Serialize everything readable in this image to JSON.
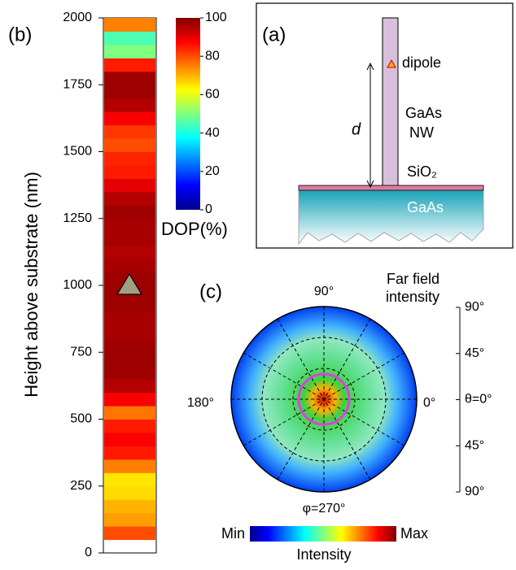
{
  "chart_data": [
    {
      "type": "strip",
      "panel": "(b)",
      "ylabel": "Height above substrate (nm)",
      "ylim": [
        0,
        2000
      ],
      "yticks": [
        0,
        250,
        500,
        750,
        1000,
        1250,
        1500,
        1750,
        2000
      ],
      "y": [
        75,
        125,
        175,
        225,
        275,
        325,
        375,
        425,
        475,
        525,
        575,
        625,
        675,
        725,
        775,
        825,
        875,
        925,
        975,
        1025,
        1075,
        1125,
        1175,
        1225,
        1275,
        1325,
        1375,
        1425,
        1475,
        1525,
        1575,
        1625,
        1675,
        1725,
        1775,
        1825,
        1875,
        1925,
        1975
      ],
      "values": [
        80,
        72,
        70,
        66,
        65,
        75,
        85,
        88,
        85,
        76,
        88,
        95,
        97,
        97,
        97,
        96,
        96,
        97,
        97,
        97,
        96,
        95,
        96,
        96,
        97,
        95,
        90,
        85,
        84,
        80,
        82,
        88,
        95,
        97,
        97,
        85,
        50,
        45,
        75
      ],
      "marker_y": 1000,
      "colorbar": {
        "label": "DOP(%)",
        "lim": [
          0,
          100
        ],
        "ticks": [
          0,
          20,
          40,
          60,
          80,
          100
        ]
      }
    },
    {
      "type": "polar",
      "panel": "(c)",
      "title": [
        "Far field",
        "intensity"
      ],
      "angle_labels": {
        "top": "90°",
        "left": "180°",
        "right": "0°",
        "bottom": "φ=270°"
      },
      "theta_labels": [
        "90°",
        "45°",
        "θ=0°",
        "45°",
        "90°"
      ],
      "colorbar": {
        "min_label": "Min",
        "max_label": "Max",
        "label": "Intensity"
      }
    }
  ],
  "diagram": {
    "panel": "(a)",
    "dipole": "dipole",
    "distance": "d",
    "wire": [
      "GaAs",
      "NW"
    ],
    "oxide": "SiO₂",
    "substrate": "GaAs"
  }
}
